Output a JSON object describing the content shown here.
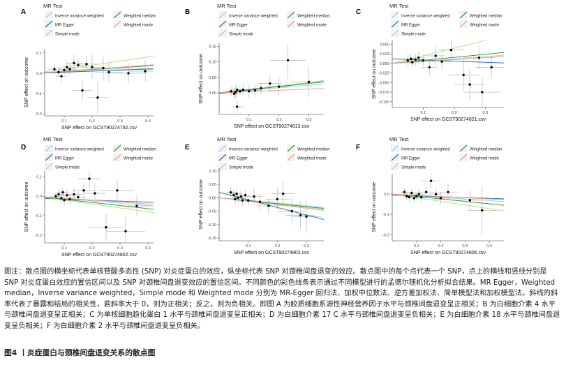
{
  "figure": {
    "caption": "图注：散点图的横坐标代表单核苷酸多态性 (SNP) 对炎症蛋白的效应，纵坐标代表 SNP 对颈椎间盘退变的效应。散点图中的每个点代表一个 SNP，点上的横线和竖线分别是 SNP 对炎症蛋白效应的置信区间以及 SNP 对颈椎间盘退变效应的置信区间。不同颜色的彩色线条表示通过不同模型进行的孟德尔随机化分析拟合结果。MR Egger，Weighted median，Inverse variance weighted，Simple mode 和 Weighted mode 分别为 MR-Egger 回归法、加权中位数法、逆方差加权法、简单模型法和加权模型法。斜线的斜率代表了暴露和结局的相关性，若斜率大于 0，则为正相关；反之，则为负相关。即图 A 为胶质细胞系源性神经营养因子水平与颈椎间盘退变呈正相关；B 为白细胞介素 4 水平与颈椎间盘退变呈正相关；C 为单核细胞趋化蛋白 1 水平与颈椎间盘退变呈正相关；D 为白细胞介素 17 C 水平与颈椎间盘退变呈负相关；E 为白细胞介素 18 水平与颈椎间盘退变呈负相关；F 为白细胞介素 2 水平与颈椎间盘退变呈负相关。",
    "title": "图4 丨炎症蛋白与颈椎间盘退变关系的散点图"
  },
  "legend": {
    "title": "MR Test",
    "items": [
      {
        "label": "Inverse variance weighted",
        "color": "#a6cee3"
      },
      {
        "label": "Weighted median",
        "color": "#33a02c"
      },
      {
        "label": "MR Egger",
        "color": "#1f78b4"
      },
      {
        "label": "Weighted mode",
        "color": "#fb9a99"
      },
      {
        "label": "Simple mode",
        "color": "#b2df8a"
      }
    ]
  },
  "chart_data": [
    {
      "type": "scatter",
      "panel": "A",
      "xlabel": "SNP effect on GCST90274792.csv",
      "ylabel": "SNP effect on outcome",
      "xlim": [
        0.03,
        0.42
      ],
      "ylim": [
        -0.21,
        0.12
      ],
      "xticks": [
        0.1,
        0.2,
        0.3,
        0.4
      ],
      "xtick_labels": [
        "0.1",
        "0.2",
        "0.3",
        "0.4"
      ],
      "yticks": [
        -0.2,
        -0.1,
        0.0,
        0.1
      ],
      "ytick_labels": [
        "-0.2",
        "-0.1",
        "0.0",
        "0.1"
      ],
      "points": [
        {
          "x": 0.065,
          "y": 0.02,
          "xe": 0.025,
          "ye": 0.025
        },
        {
          "x": 0.08,
          "y": 0.005,
          "xe": 0.02,
          "ye": 0.025
        },
        {
          "x": 0.09,
          "y": -0.015,
          "xe": 0.02,
          "ye": 0.03
        },
        {
          "x": 0.1,
          "y": 0.015,
          "xe": 0.025,
          "ye": 0.02
        },
        {
          "x": 0.11,
          "y": 0.03,
          "xe": 0.03,
          "ye": 0.025
        },
        {
          "x": 0.12,
          "y": 0.02,
          "xe": 0.025,
          "ye": 0.03
        },
        {
          "x": 0.135,
          "y": 0.05,
          "xe": 0.03,
          "ye": 0.04
        },
        {
          "x": 0.15,
          "y": 0.04,
          "xe": 0.03,
          "ye": 0.03
        },
        {
          "x": 0.165,
          "y": -0.085,
          "xe": 0.035,
          "ye": 0.05
        },
        {
          "x": 0.18,
          "y": 0.045,
          "xe": 0.03,
          "ye": 0.04
        },
        {
          "x": 0.2,
          "y": 0.03,
          "xe": 0.04,
          "ye": 0.06
        },
        {
          "x": 0.22,
          "y": -0.12,
          "xe": 0.04,
          "ye": 0.08
        },
        {
          "x": 0.24,
          "y": 0.025,
          "xe": 0.05,
          "ye": 0.06
        },
        {
          "x": 0.26,
          "y": 0.005,
          "xe": 0.05,
          "ye": 0.05
        },
        {
          "x": 0.33,
          "y": 0.0,
          "xe": 0.07,
          "ye": 0.05
        },
        {
          "x": 0.39,
          "y": 0.01,
          "xe": 0.06,
          "ye": 0.05
        }
      ],
      "lines": [
        {
          "name": "Inverse variance weighted",
          "slope": 0.06,
          "intercept": 0.0
        },
        {
          "name": "MR Egger",
          "slope": 0.05,
          "intercept": 0.0
        },
        {
          "name": "Simple mode",
          "slope": 0.2,
          "intercept": 0.0
        },
        {
          "name": "Weighted median",
          "slope": 0.09,
          "intercept": 0.0
        },
        {
          "name": "Weighted mode",
          "slope": 0.1,
          "intercept": 0.0
        }
      ]
    },
    {
      "type": "scatter",
      "panel": "B",
      "xlabel": "SNP effect on GCST90274813.csv",
      "ylabel": "SNP effect on outcome",
      "xlim": [
        0.0,
        0.35
      ],
      "ylim": [
        -0.07,
        0.16
      ],
      "xticks": [
        0.1,
        0.2,
        0.3
      ],
      "xtick_labels": [
        "0.1",
        "0.2",
        "0.3"
      ],
      "yticks": [
        0.0,
        0.05,
        0.1,
        0.15
      ],
      "ytick_labels": [
        "0.00",
        "0.05",
        "0.10",
        "0.15"
      ],
      "points": [
        {
          "x": 0.04,
          "y": 0.005,
          "xe": 0.015,
          "ye": 0.015
        },
        {
          "x": 0.05,
          "y": -0.003,
          "xe": 0.015,
          "ye": 0.015
        },
        {
          "x": 0.055,
          "y": 0.002,
          "xe": 0.015,
          "ye": 0.02
        },
        {
          "x": 0.06,
          "y": 0.01,
          "xe": 0.02,
          "ye": 0.02
        },
        {
          "x": 0.07,
          "y": 0.005,
          "xe": 0.02,
          "ye": 0.015
        },
        {
          "x": 0.08,
          "y": 0.01,
          "xe": 0.02,
          "ye": 0.02
        },
        {
          "x": 0.1,
          "y": 0.005,
          "xe": 0.03,
          "ye": 0.02
        },
        {
          "x": 0.12,
          "y": 0.008,
          "xe": 0.025,
          "ye": 0.02
        },
        {
          "x": 0.14,
          "y": 0.015,
          "xe": 0.03,
          "ye": 0.02
        },
        {
          "x": 0.17,
          "y": 0.03,
          "xe": 0.04,
          "ye": 0.03
        },
        {
          "x": 0.2,
          "y": 0.02,
          "xe": 0.04,
          "ye": 0.03
        },
        {
          "x": 0.23,
          "y": 0.105,
          "xe": 0.06,
          "ye": 0.06
        },
        {
          "x": 0.3,
          "y": 0.035,
          "xe": 0.06,
          "ye": 0.05
        },
        {
          "x": 0.06,
          "y": -0.045,
          "xe": 0.02,
          "ye": 0.02
        }
      ],
      "lines": [
        {
          "name": "Inverse variance weighted",
          "slope": 0.08,
          "intercept": 0.0
        },
        {
          "name": "MR Egger",
          "slope": 0.12,
          "intercept": -0.003
        },
        {
          "name": "Simple mode",
          "slope": 0.11,
          "intercept": 0.0
        },
        {
          "name": "Weighted median",
          "slope": 0.1,
          "intercept": 0.0
        },
        {
          "name": "Weighted mode",
          "slope": 0.04,
          "intercept": 0.0
        }
      ]
    },
    {
      "type": "scatter",
      "panel": "C",
      "xlabel": "SNP effect on GCST90274821.csv",
      "ylabel": "SNP effect on outcome",
      "xlim": [
        0.0,
        0.36
      ],
      "ylim": [
        -0.115,
        0.06
      ],
      "xticks": [
        0.1,
        0.2,
        0.3
      ],
      "xtick_labels": [
        "0.1",
        "0.2",
        "0.3"
      ],
      "yticks": [
        -0.1,
        -0.075,
        -0.05,
        -0.025,
        0.0,
        0.025,
        0.05
      ],
      "ytick_labels": [
        "-0.100",
        "-0.075",
        "-0.050",
        "-0.025",
        "0.000",
        "0.025",
        "0.050"
      ],
      "points": [
        {
          "x": 0.05,
          "y": 0.008,
          "xe": 0.015,
          "ye": 0.015
        },
        {
          "x": 0.06,
          "y": 0.012,
          "xe": 0.015,
          "ye": 0.015
        },
        {
          "x": 0.065,
          "y": 0.003,
          "xe": 0.015,
          "ye": 0.012
        },
        {
          "x": 0.075,
          "y": 0.01,
          "xe": 0.02,
          "ye": 0.015
        },
        {
          "x": 0.085,
          "y": 0.015,
          "xe": 0.02,
          "ye": 0.015
        },
        {
          "x": 0.1,
          "y": 0.008,
          "xe": 0.02,
          "ye": 0.015
        },
        {
          "x": 0.12,
          "y": -0.01,
          "xe": 0.025,
          "ye": 0.02
        },
        {
          "x": 0.14,
          "y": 0.02,
          "xe": 0.03,
          "ye": 0.025
        },
        {
          "x": 0.16,
          "y": 0.005,
          "xe": 0.03,
          "ye": 0.02
        },
        {
          "x": 0.19,
          "y": 0.035,
          "xe": 0.04,
          "ye": 0.03
        },
        {
          "x": 0.23,
          "y": -0.03,
          "xe": 0.05,
          "ye": 0.04
        },
        {
          "x": 0.25,
          "y": -0.055,
          "xe": 0.05,
          "ye": 0.04
        },
        {
          "x": 0.29,
          "y": -0.075,
          "xe": 0.06,
          "ye": 0.04
        },
        {
          "x": 0.32,
          "y": -0.01,
          "xe": 0.05,
          "ye": 0.03
        },
        {
          "x": 0.28,
          "y": 0.015,
          "xe": 0.05,
          "ye": 0.03
        }
      ],
      "lines": [
        {
          "name": "Inverse variance weighted",
          "slope": 0.06,
          "intercept": 0.0
        },
        {
          "name": "MR Egger",
          "slope": -0.03,
          "intercept": 0.012
        },
        {
          "name": "Simple mode",
          "slope": 0.2,
          "intercept": 0.0
        },
        {
          "name": "Weighted median",
          "slope": 0.08,
          "intercept": 0.0
        },
        {
          "name": "Weighted mode",
          "slope": 0.05,
          "intercept": 0.0
        }
      ]
    },
    {
      "type": "scatter",
      "panel": "D",
      "xlabel": "SNP effect on GCST90274802.csv",
      "ylabel": "SNP effect on outcome",
      "xlim": [
        0.03,
        0.42
      ],
      "ylim": [
        -0.24,
        0.13
      ],
      "xticks": [
        0.1,
        0.2,
        0.3,
        0.4
      ],
      "xtick_labels": [
        "0.1",
        "0.2",
        "0.3",
        "0.4"
      ],
      "yticks": [
        -0.2,
        -0.1,
        0.0,
        0.1
      ],
      "ytick_labels": [
        "-0.2",
        "-0.1",
        "0.0",
        "0.1"
      ],
      "points": [
        {
          "x": 0.07,
          "y": 0.0,
          "xe": 0.02,
          "ye": 0.02
        },
        {
          "x": 0.08,
          "y": 0.01,
          "xe": 0.02,
          "ye": 0.02
        },
        {
          "x": 0.09,
          "y": -0.01,
          "xe": 0.02,
          "ye": 0.025
        },
        {
          "x": 0.095,
          "y": 0.02,
          "xe": 0.02,
          "ye": 0.02
        },
        {
          "x": 0.1,
          "y": -0.02,
          "xe": 0.02,
          "ye": 0.025
        },
        {
          "x": 0.11,
          "y": 0.005,
          "xe": 0.025,
          "ye": 0.03
        },
        {
          "x": 0.12,
          "y": -0.015,
          "xe": 0.025,
          "ye": 0.025
        },
        {
          "x": 0.135,
          "y": 0.01,
          "xe": 0.03,
          "ye": 0.03
        },
        {
          "x": 0.15,
          "y": -0.005,
          "xe": 0.03,
          "ye": 0.03
        },
        {
          "x": 0.17,
          "y": 0.03,
          "xe": 0.04,
          "ye": 0.04
        },
        {
          "x": 0.19,
          "y": 0.09,
          "xe": 0.04,
          "ye": 0.05
        },
        {
          "x": 0.21,
          "y": 0.015,
          "xe": 0.04,
          "ye": 0.05
        },
        {
          "x": 0.25,
          "y": -0.16,
          "xe": 0.06,
          "ye": 0.07
        },
        {
          "x": 0.29,
          "y": 0.03,
          "xe": 0.06,
          "ye": 0.05
        },
        {
          "x": 0.32,
          "y": -0.18,
          "xe": 0.07,
          "ye": 0.08
        },
        {
          "x": 0.36,
          "y": -0.05,
          "xe": 0.05,
          "ye": 0.05
        }
      ],
      "lines": [
        {
          "name": "Inverse variance weighted",
          "slope": -0.12,
          "intercept": 0.0
        },
        {
          "name": "MR Egger",
          "slope": -0.05,
          "intercept": -0.01
        },
        {
          "name": "Simple mode",
          "slope": -0.2,
          "intercept": 0.0
        },
        {
          "name": "Weighted median",
          "slope": -0.16,
          "intercept": 0.0
        },
        {
          "name": "Weighted mode",
          "slope": -0.1,
          "intercept": 0.0
        }
      ]
    },
    {
      "type": "scatter",
      "panel": "E",
      "xlabel": "SNP effect on GCST90274803.csv",
      "ylabel": "SNP effect on outcome",
      "xlim": [
        0.0,
        0.36
      ],
      "ylim": [
        -0.16,
        0.11
      ],
      "xticks": [
        0.1,
        0.2,
        0.3
      ],
      "xtick_labels": [
        "0.1",
        "0.2",
        "0.3"
      ],
      "yticks": [
        -0.15,
        -0.1,
        -0.05,
        0.0,
        0.05,
        0.1
      ],
      "ytick_labels": [
        "-0.15",
        "-0.10",
        "-0.05",
        "0.00",
        "0.05",
        "0.10"
      ],
      "points": [
        {
          "x": 0.04,
          "y": 0.02,
          "xe": 0.015,
          "ye": 0.02
        },
        {
          "x": 0.05,
          "y": 0.01,
          "xe": 0.015,
          "ye": 0.02
        },
        {
          "x": 0.055,
          "y": -0.005,
          "xe": 0.015,
          "ye": 0.02
        },
        {
          "x": 0.06,
          "y": 0.015,
          "xe": 0.02,
          "ye": 0.02
        },
        {
          "x": 0.065,
          "y": 0.0,
          "xe": 0.02,
          "ye": 0.02
        },
        {
          "x": 0.075,
          "y": 0.005,
          "xe": 0.02,
          "ye": 0.02
        },
        {
          "x": 0.08,
          "y": -0.01,
          "xe": 0.02,
          "ye": 0.02
        },
        {
          "x": 0.09,
          "y": 0.01,
          "xe": 0.02,
          "ye": 0.02
        },
        {
          "x": 0.1,
          "y": -0.01,
          "xe": 0.025,
          "ye": 0.02
        },
        {
          "x": 0.12,
          "y": 0.005,
          "xe": 0.03,
          "ye": 0.03
        },
        {
          "x": 0.14,
          "y": -0.015,
          "xe": 0.03,
          "ye": 0.03
        },
        {
          "x": 0.17,
          "y": -0.03,
          "xe": 0.04,
          "ye": 0.03
        },
        {
          "x": 0.2,
          "y": -0.005,
          "xe": 0.04,
          "ye": 0.04
        },
        {
          "x": 0.22,
          "y": 0.015,
          "xe": 0.04,
          "ye": 0.05
        },
        {
          "x": 0.25,
          "y": -0.05,
          "xe": 0.05,
          "ye": 0.05
        },
        {
          "x": 0.28,
          "y": -0.065,
          "xe": 0.05,
          "ye": 0.05
        },
        {
          "x": 0.3,
          "y": -0.07,
          "xe": 0.05,
          "ye": 0.06
        }
      ],
      "lines": [
        {
          "name": "Inverse variance weighted",
          "slope": -0.1,
          "intercept": 0.0
        },
        {
          "name": "MR Egger",
          "slope": -0.28,
          "intercept": 0.02
        },
        {
          "name": "Simple mode",
          "slope": -0.12,
          "intercept": 0.0
        },
        {
          "name": "Weighted median",
          "slope": -0.11,
          "intercept": 0.0
        },
        {
          "name": "Weighted mode",
          "slope": -0.13,
          "intercept": 0.0
        }
      ]
    },
    {
      "type": "scatter",
      "panel": "F",
      "xlabel": "SNP effect on GCST90274806.csv",
      "ylabel": "SNP effect on outcome",
      "xlim": [
        0.0,
        0.46
      ],
      "ylim": [
        -0.23,
        0.1
      ],
      "xticks": [
        0.1,
        0.2,
        0.3,
        0.4
      ],
      "xtick_labels": [
        "0.1",
        "0.2",
        "0.3",
        "0.4"
      ],
      "yticks": [
        -0.2,
        -0.1,
        0.0
      ],
      "ytick_labels": [
        "-0.2",
        "-0.1",
        "0.0"
      ],
      "points": [
        {
          "x": 0.05,
          "y": 0.01,
          "xe": 0.015,
          "ye": 0.02
        },
        {
          "x": 0.06,
          "y": -0.01,
          "xe": 0.015,
          "ye": 0.02
        },
        {
          "x": 0.07,
          "y": -0.015,
          "xe": 0.02,
          "ye": 0.02
        },
        {
          "x": 0.08,
          "y": 0.005,
          "xe": 0.02,
          "ye": 0.02
        },
        {
          "x": 0.09,
          "y": -0.02,
          "xe": 0.02,
          "ye": 0.025
        },
        {
          "x": 0.1,
          "y": -0.01,
          "xe": 0.02,
          "ye": 0.02
        },
        {
          "x": 0.11,
          "y": 0.0,
          "xe": 0.025,
          "ye": 0.025
        },
        {
          "x": 0.12,
          "y": -0.015,
          "xe": 0.025,
          "ye": 0.025
        },
        {
          "x": 0.14,
          "y": 0.01,
          "xe": 0.03,
          "ye": 0.03
        },
        {
          "x": 0.16,
          "y": 0.065,
          "xe": 0.04,
          "ye": 0.04
        },
        {
          "x": 0.18,
          "y": 0.0,
          "xe": 0.03,
          "ye": 0.03
        },
        {
          "x": 0.2,
          "y": -0.02,
          "xe": 0.04,
          "ye": 0.03
        },
        {
          "x": 0.23,
          "y": 0.01,
          "xe": 0.04,
          "ye": 0.04
        },
        {
          "x": 0.32,
          "y": -0.03,
          "xe": 0.06,
          "ye": 0.05
        },
        {
          "x": 0.37,
          "y": -0.08,
          "xe": 0.06,
          "ye": 0.12
        }
      ],
      "lines": [
        {
          "name": "Inverse variance weighted",
          "slope": -0.08,
          "intercept": 0.0
        },
        {
          "name": "MR Egger",
          "slope": -0.04,
          "intercept": -0.005
        },
        {
          "name": "Simple mode",
          "slope": -0.18,
          "intercept": 0.0
        },
        {
          "name": "Weighted median",
          "slope": -0.12,
          "intercept": 0.0
        },
        {
          "name": "Weighted mode",
          "slope": -0.06,
          "intercept": 0.0
        }
      ]
    }
  ]
}
